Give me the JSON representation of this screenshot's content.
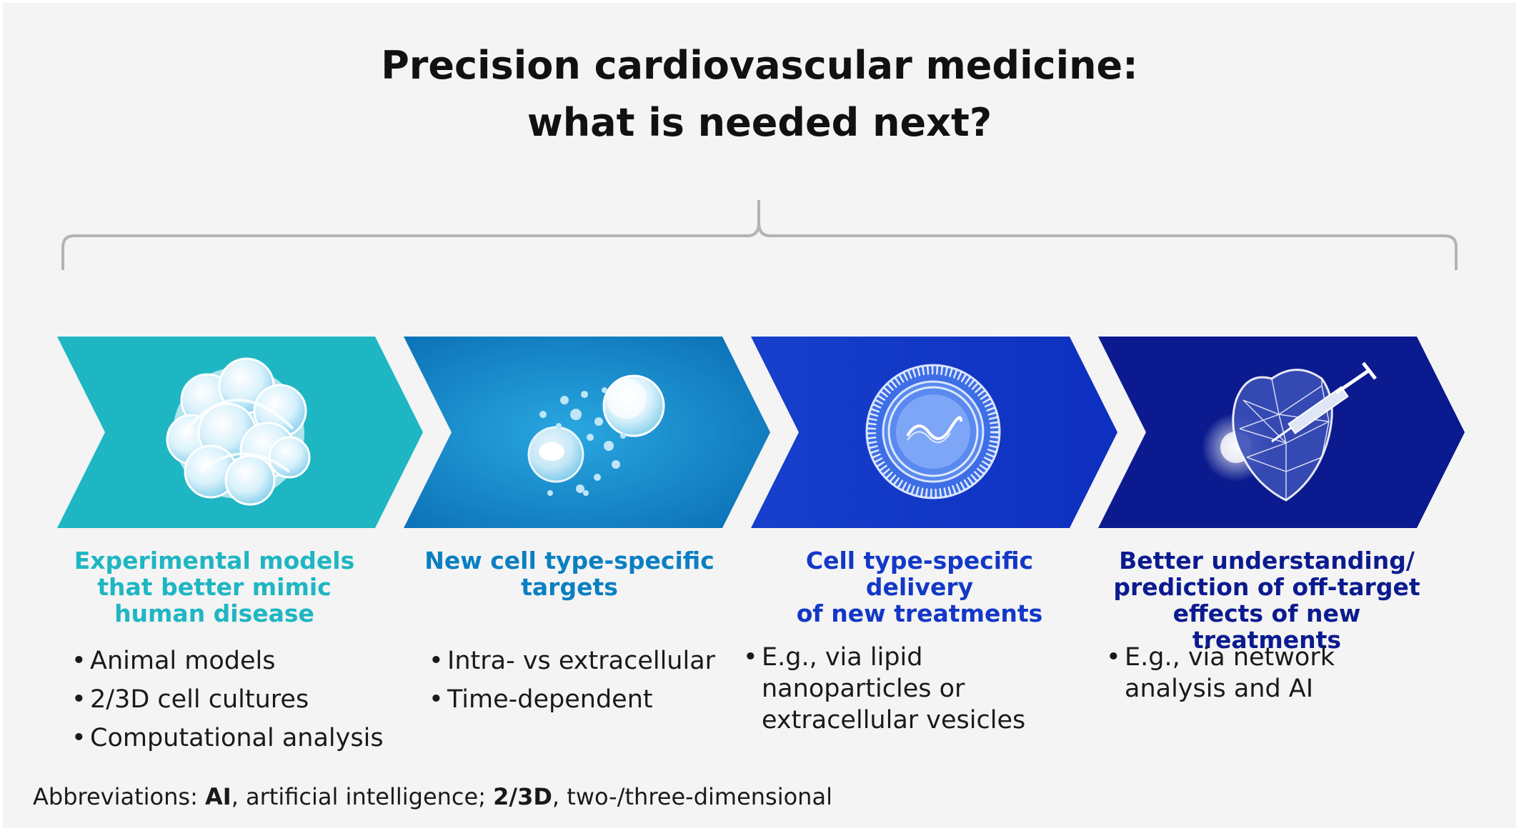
{
  "title": {
    "line1": "Precision cardiovascular medicine:",
    "line2": "what is needed next?"
  },
  "colors": {
    "step1": "#1fb6c3",
    "step2": "#0a7fc2",
    "step3": "#1338c7",
    "step4": "#0b1b8f",
    "bracket": "#b3b3b3"
  },
  "steps": [
    {
      "icon": "cell-cluster-icon",
      "heading_lines": [
        "Experimental models",
        "that better mimic",
        "human disease"
      ],
      "bullets": [
        "Animal models",
        "2/3D cell cultures",
        "Computational analysis"
      ]
    },
    {
      "icon": "cells-particles-icon",
      "heading_lines": [
        "New cell type-specific",
        "targets"
      ],
      "bullets": [
        "Intra- vs extracellular",
        "Time-dependent"
      ]
    },
    {
      "icon": "lipid-nanoparticle-icon",
      "heading_lines": [
        "Cell type-specific delivery",
        "of new treatments"
      ],
      "bullets": [
        "E.g., via lipid nanoparticles or extracellular vesicles"
      ]
    },
    {
      "icon": "heart-syringe-icon",
      "heading_lines": [
        "Better understanding/",
        "prediction of off-target",
        "effects of new treatments"
      ],
      "bullets": [
        "E.g., via network analysis and AI"
      ]
    }
  ],
  "abbreviations": {
    "prefix": "Abbreviations: ",
    "term1": "AI",
    "def1": ", artificial intelligence; ",
    "term2": "2/3D",
    "def2": ", two-/three-dimensional"
  }
}
